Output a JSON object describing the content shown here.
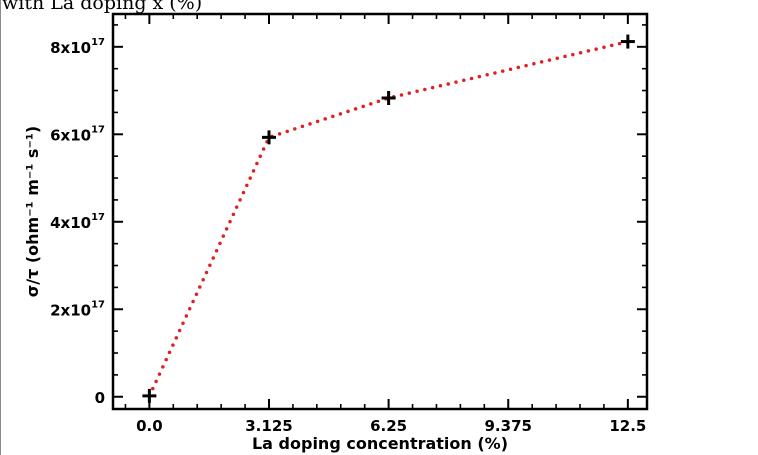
{
  "caption": "with La doping x (%)",
  "chart_data": {
    "type": "scatter",
    "xlabel": "La doping concentration (%)",
    "ylabel": "σ/τ (ohm⁻¹ m⁻¹ s⁻¹)",
    "x_ticks": [
      "0.0",
      "3.125",
      "6.25",
      "9.375",
      "12.5"
    ],
    "y_ticks": [
      {
        "value": 0,
        "base": "0",
        "exp": ""
      },
      {
        "value": 2e+17,
        "base": "2x10",
        "exp": "17"
      },
      {
        "value": 4e+17,
        "base": "4x10",
        "exp": "17"
      },
      {
        "value": 6e+17,
        "base": "6x10",
        "exp": "17"
      },
      {
        "value": 8e+17,
        "base": "8x10",
        "exp": "17"
      }
    ],
    "xlim": [
      -0.95,
      13.0
    ],
    "ylim": [
      -2.8e+16,
      8.75e+17
    ],
    "series": [
      {
        "x": [
          0.0,
          3.125,
          6.25,
          12.5
        ],
        "y": [
          2000000000000000.0,
          5.93e+17,
          6.83e+17,
          8.12e+17
        ]
      }
    ],
    "marker": "plus",
    "line_style": "dotted",
    "colors": {
      "line": "#e02020",
      "marker": "#000000"
    },
    "grid": false
  }
}
